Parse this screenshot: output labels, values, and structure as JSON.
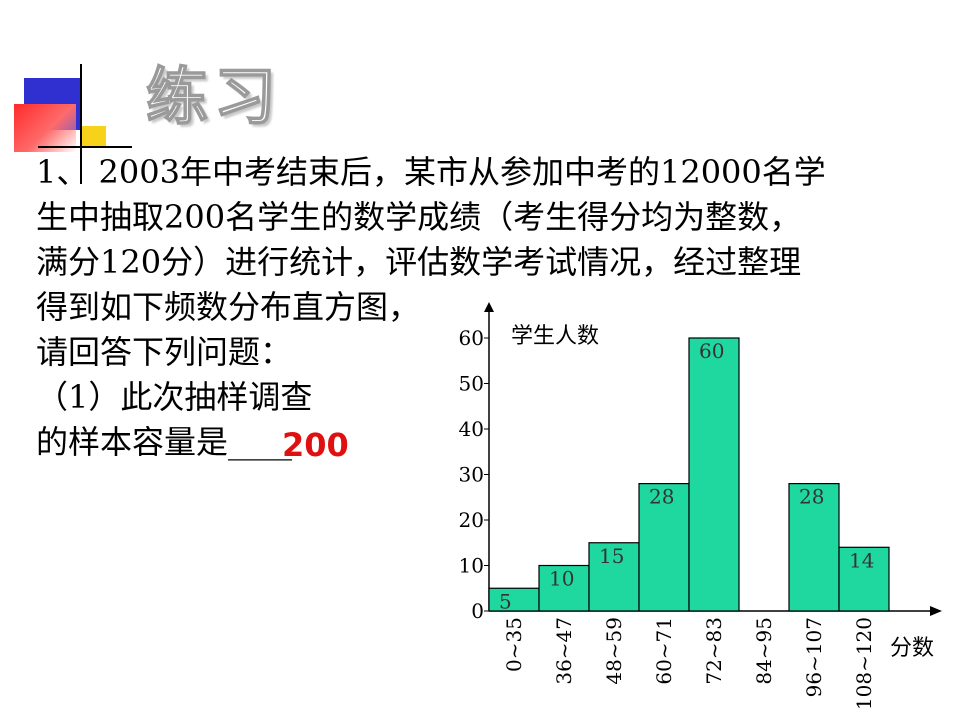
{
  "slide": {
    "title": "练习"
  },
  "question": {
    "lines": [
      "1、 2003年中考结束后，某市从参加中考的12000名学",
      "生中抽取200名学生的数学成绩（考生得分均为整数，",
      "满分120分）进行统计，评估数学考试情况，经过整理",
      "得到如下频数分布直方图，",
      "请回答下列问题：",
      "（1）此次抽样调查",
      "的样本容量是____"
    ],
    "answer": "200"
  },
  "chart_data": {
    "type": "bar",
    "ylabel": "学生人数",
    "xlabel": "分数",
    "ylim": [
      0,
      60
    ],
    "yticks": [
      0,
      10,
      20,
      30,
      40,
      50,
      60
    ],
    "categories": [
      "0~35",
      "36~47",
      "48~59",
      "60~71",
      "72~83",
      "84~95",
      "96~107",
      "108~120"
    ],
    "values": [
      5,
      10,
      15,
      28,
      60,
      0,
      28,
      14
    ],
    "data_labels": [
      "5",
      "10",
      "15",
      "28",
      "60",
      "",
      "28",
      "14"
    ],
    "bar_color": "#1fd8a0",
    "grid": false,
    "legend": "none"
  }
}
